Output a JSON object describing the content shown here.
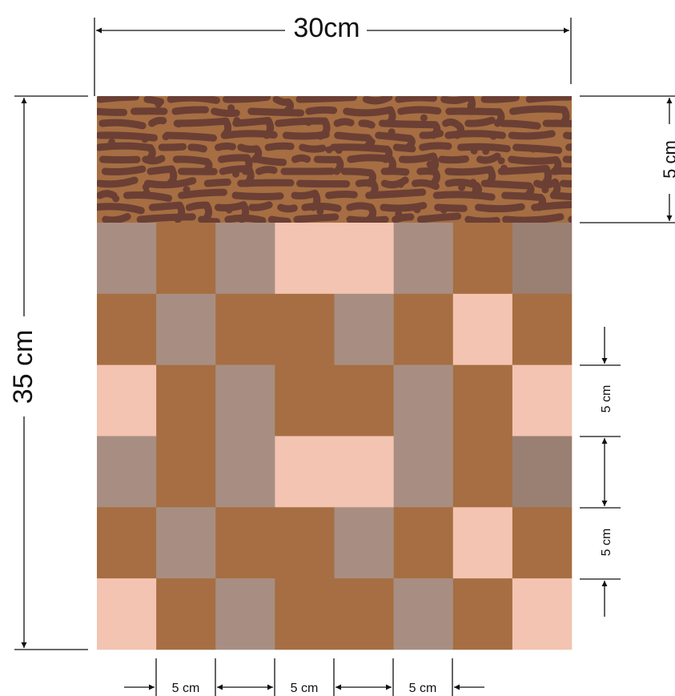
{
  "labels": {
    "width_total": "30cm",
    "height_total": "35 cm",
    "border_height": "5 cm",
    "tile_height_1": "5 cm",
    "tile_height_2": "5 cm",
    "tile_width_1": "5 cm",
    "tile_width_2": "5 cm",
    "tile_width_3": "5 cm"
  },
  "border": {
    "base_color": "#A66E42",
    "pattern_color": "#6B3F34",
    "pattern": "brown organic labyrinth texture"
  },
  "colors": {
    "T": "#A66E42",
    "G": "#A88E82",
    "P": "#F3C4B1",
    "D": "#9A8072"
  },
  "tile_grid": [
    [
      "G",
      "T",
      "G",
      "P",
      "P",
      "G",
      "T",
      "D"
    ],
    [
      "T",
      "G",
      "T",
      "T",
      "G",
      "T",
      "P",
      "T"
    ],
    [
      "P",
      "T",
      "G",
      "T",
      "T",
      "G",
      "T",
      "P"
    ],
    [
      "G",
      "T",
      "G",
      "P",
      "P",
      "G",
      "T",
      "D"
    ],
    [
      "T",
      "G",
      "T",
      "T",
      "G",
      "T",
      "P",
      "T"
    ],
    [
      "P",
      "T",
      "G",
      "T",
      "T",
      "G",
      "T",
      "P"
    ]
  ]
}
